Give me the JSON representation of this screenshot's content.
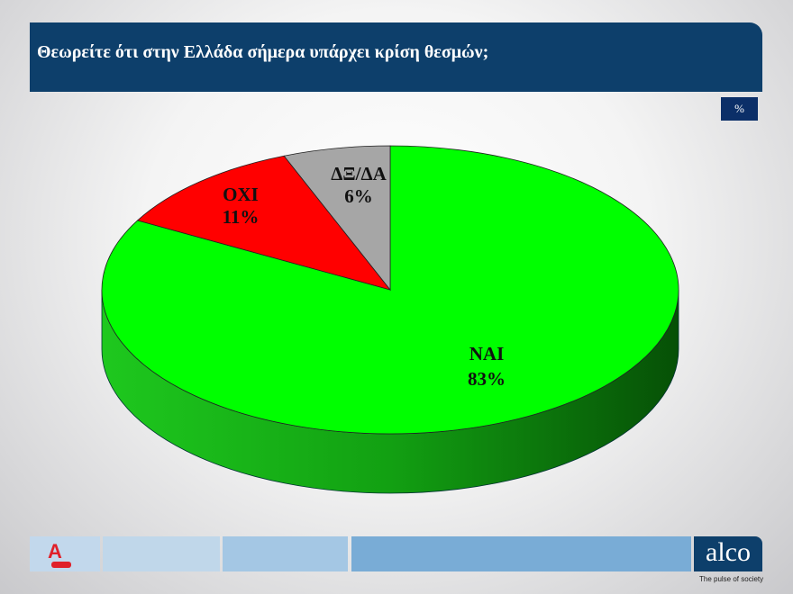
{
  "header": {
    "title": "Θεωρείτε ότι στην Ελλάδα σήμερα υπάρχει κρίση θεσμών;"
  },
  "unit_badge": "%",
  "chart_data": {
    "type": "pie",
    "style": "3d",
    "title": "Θεωρείτε ότι στην Ελλάδα σήμερα υπάρχει κρίση θεσμών;",
    "slices": [
      {
        "label": "ΝΑΙ",
        "value": 83,
        "value_label": "83%",
        "color": "#00ff00"
      },
      {
        "label": "ΟΧΙ",
        "value": 11,
        "value_label": "11%",
        "color": "#ff0000"
      },
      {
        "label": "ΔΞ/ΔΑ",
        "value": 6,
        "value_label": "6%",
        "color": "#a6a6a6"
      }
    ]
  },
  "footer": {
    "brand": "alco",
    "tagline": "The pulse of society",
    "partner_logo": "ALPHA NEWS"
  }
}
